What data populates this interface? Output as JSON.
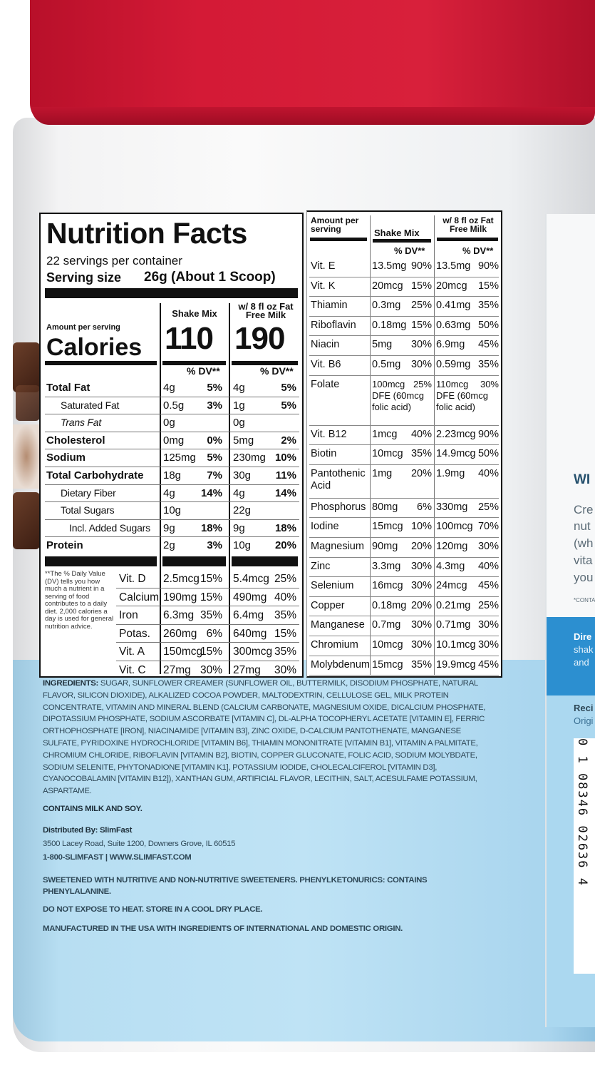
{
  "label": {
    "title": "Nutrition Facts",
    "servings": "22 servings per container",
    "serving_size_label": "Serving size",
    "serving_size_value": "26g (About 1 Scoop)",
    "amount_per_serving": "Amount per serving",
    "calories_label": "Calories",
    "col_shake": "Shake Mix",
    "col_milk": "w/ 8 fl oz Fat Free Milk",
    "calories_shake": "110",
    "calories_milk": "190",
    "dv_header": "% DV**",
    "rows": [
      {
        "name": "Total Fat",
        "bold": true,
        "indent": 0,
        "s": "4g",
        "sdv": "5%",
        "m": "4g",
        "mdv": "5%"
      },
      {
        "name": "Saturated Fat",
        "bold": false,
        "indent": 1,
        "s": "0.5g",
        "sdv": "3%",
        "m": "1g",
        "mdv": "5%"
      },
      {
        "name": "Trans Fat",
        "bold": false,
        "indent": 1,
        "italic": true,
        "s": "0g",
        "sdv": "",
        "m": "0g",
        "mdv": ""
      },
      {
        "name": "Cholesterol",
        "bold": true,
        "indent": 0,
        "s": "0mg",
        "sdv": "0%",
        "m": "5mg",
        "mdv": "2%"
      },
      {
        "name": "Sodium",
        "bold": true,
        "indent": 0,
        "s": "125mg",
        "sdv": "5%",
        "m": "230mg",
        "mdv": "10%"
      },
      {
        "name": "Total Carbohydrate",
        "bold": true,
        "indent": 0,
        "s": "18g",
        "sdv": "7%",
        "m": "30g",
        "mdv": "11%"
      },
      {
        "name": "Dietary Fiber",
        "bold": false,
        "indent": 1,
        "s": "4g",
        "sdv": "14%",
        "m": "4g",
        "mdv": "14%"
      },
      {
        "name": "Total Sugars",
        "bold": false,
        "indent": 1,
        "s": "10g",
        "sdv": "",
        "m": "22g",
        "mdv": ""
      },
      {
        "name": "Incl. Added Sugars",
        "bold": false,
        "indent": 2,
        "s": "9g",
        "sdv": "18%",
        "m": "9g",
        "mdv": "18%"
      },
      {
        "name": "Protein",
        "bold": true,
        "indent": 0,
        "s": "2g",
        "sdv": "3%",
        "m": "10g",
        "mdv": "20%"
      }
    ],
    "vitamins": [
      {
        "name": "Vit. D",
        "s": "2.5mcg",
        "sdv": "15%",
        "m": "5.4mcg",
        "mdv": "25%"
      },
      {
        "name": "Calcium",
        "s": "190mg",
        "sdv": "15%",
        "m": "490mg",
        "mdv": "40%"
      },
      {
        "name": "Iron",
        "s": "6.3mg",
        "sdv": "35%",
        "m": "6.4mg",
        "mdv": "35%"
      },
      {
        "name": "Potas.",
        "s": "260mg",
        "sdv": "6%",
        "m": "640mg",
        "mdv": "15%"
      },
      {
        "name": "Vit. A",
        "s": "150mcg",
        "sdv": "15%",
        "m": "300mcg",
        "mdv": "35%"
      },
      {
        "name": "Vit. C",
        "s": "27mg",
        "sdv": "30%",
        "m": "27mg",
        "mdv": "30%"
      }
    ],
    "footnote": "**The % Daily Value (DV) tells you how much a nutrient in a serving of food contributes to a daily diet. 2,000 calories a day is used for general nutrition advice."
  },
  "right_table": {
    "amount_per_serving": "Amount per serving",
    "col_shake": "Shake Mix",
    "col_milk": "w/ 8 fl oz Fat Free Milk",
    "dv_header": "% DV**",
    "rows": [
      {
        "name": "Vit. E",
        "s": "13.5mg",
        "sdv": "90%",
        "m": "13.5mg",
        "mdv": "90%"
      },
      {
        "name": "Vit. K",
        "s": "20mcg",
        "sdv": "15%",
        "m": "20mcg",
        "mdv": "15%"
      },
      {
        "name": "Thiamin",
        "s": "0.3mg",
        "sdv": "25%",
        "m": "0.41mg",
        "mdv": "35%"
      },
      {
        "name": "Riboflavin",
        "s": "0.18mg",
        "sdv": "15%",
        "m": "0.63mg",
        "mdv": "50%"
      },
      {
        "name": "Niacin",
        "s": "5mg",
        "sdv": "30%",
        "m": "6.9mg",
        "mdv": "45%"
      },
      {
        "name": "Vit. B6",
        "s": "0.5mg",
        "sdv": "30%",
        "m": "0.59mg",
        "mdv": "35%"
      },
      {
        "name": "Folate",
        "s": "100mcg DFE (60mcg folic acid)",
        "sdv": "25%",
        "m": "110mcg DFE (60mcg folic acid)",
        "mdv": "30%",
        "tall": 3
      },
      {
        "name": "Vit. B12",
        "s": "1mcg",
        "sdv": "40%",
        "m": "2.23mcg",
        "mdv": "90%"
      },
      {
        "name": "Biotin",
        "s": "10mcg",
        "sdv": "35%",
        "m": "14.9mcg",
        "mdv": "50%"
      },
      {
        "name": "Pantothenic Acid",
        "s": "1mg",
        "sdv": "20%",
        "m": "1.9mg",
        "mdv": "40%",
        "tall": 2
      },
      {
        "name": "Phosphorus",
        "s": "80mg",
        "sdv": "6%",
        "m": "330mg",
        "mdv": "25%"
      },
      {
        "name": "Iodine",
        "s": "15mcg",
        "sdv": "10%",
        "m": "100mcg",
        "mdv": "70%"
      },
      {
        "name": "Magnesium",
        "s": "90mg",
        "sdv": "20%",
        "m": "120mg",
        "mdv": "30%"
      },
      {
        "name": "Zinc",
        "s": "3.3mg",
        "sdv": "30%",
        "m": "4.3mg",
        "mdv": "40%"
      },
      {
        "name": "Selenium",
        "s": "16mcg",
        "sdv": "30%",
        "m": "24mcg",
        "mdv": "45%"
      },
      {
        "name": "Copper",
        "s": "0.18mg",
        "sdv": "20%",
        "m": "0.21mg",
        "mdv": "25%"
      },
      {
        "name": "Manganese",
        "s": "0.7mg",
        "sdv": "30%",
        "m": "0.71mg",
        "mdv": "30%"
      },
      {
        "name": "Chromium",
        "s": "10mcg",
        "sdv": "30%",
        "m": "10.1mcg",
        "mdv": "30%"
      },
      {
        "name": "Molybdenum",
        "s": "15mcg",
        "sdv": "35%",
        "m": "19.9mcg",
        "mdv": "45%"
      }
    ]
  },
  "ingredients": {
    "label": "INGREDIENTS:",
    "text": "SUGAR, SUNFLOWER CREAMER (SUNFLOWER OIL, BUTTERMILK, DISODIUM PHOSPHATE, NATURAL FLAVOR, SILICON DIOXIDE), ALKALIZED COCOA POWDER, MALTODEXTRIN, CELLULOSE GEL, MILK PROTEIN CONCENTRATE, VITAMIN AND MINERAL BLEND (CALCIUM CARBONATE, MAGNESIUM OXIDE, DICALCIUM PHOSPHATE, DIPOTASSIUM PHOSPHATE, SODIUM ASCORBATE [VITAMIN C], DL-ALPHA TOCOPHERYL ACETATE [VITAMIN E], FERRIC ORTHOPHOSPHATE [IRON], NIACINAMIDE [VITAMIN B3], ZINC OXIDE, D-CALCIUM PANTOTHENATE, MANGANESE SULFATE, PYRIDOXINE HYDROCHLORIDE [VITAMIN B6], THIAMIN MONONITRATE [VITAMIN B1], VITAMIN A PALMITATE, CHROMIUM CHLORIDE, RIBOFLAVIN [VITAMIN B2], BIOTIN, COPPER GLUCONATE, FOLIC ACID, SODIUM MOLYBDATE, SODIUM SELENITE, PHYTONADIONE [VITAMIN K1], POTASSIUM IODIDE, CHOLECALCIFEROL [VITAMIN D3], CYANOCOBALAMIN [VITAMIN B12]), XANTHAN GUM, ARTIFICIAL FLAVOR, LECITHIN, SALT, ACESULFAME POTASSIUM, ASPARTAME.",
    "allergens": "CONTAINS MILK AND SOY."
  },
  "distributor": {
    "label": "Distributed By: SlimFast",
    "address": "3500 Lacey Road, Suite 1200, Downers Grove, IL 60515",
    "contact": "1-800-SLIMFAST | WWW.SLIMFAST.COM"
  },
  "notices": [
    "SWEETENED WITH NUTRITIVE AND NON-NUTRITIVE SWEETENERS. PHENYLKETONURICS: CONTAINS PHENYLALANINE.",
    "DO NOT EXPOSE TO HEAT. STORE IN A COOL DRY PLACE.",
    "MANUFACTURED IN THE USA WITH INGREDIENTS OF INTERNATIONAL AND DOMESTIC ORIGIN."
  ],
  "side_panel": {
    "heading": "WI",
    "lines": [
      "Cre",
      "nut",
      "(wh",
      "vita",
      "you"
    ],
    "footnote": "*CONTAI",
    "directions": [
      "Dire",
      "shak",
      "and"
    ],
    "recipe": [
      "Reci",
      "Origi"
    ],
    "barcode": "0 1 08346 02636 4"
  },
  "colors": {
    "lid": "#d41a36",
    "band": "#bfe3f5",
    "directions_band": "#2c8fd0"
  }
}
